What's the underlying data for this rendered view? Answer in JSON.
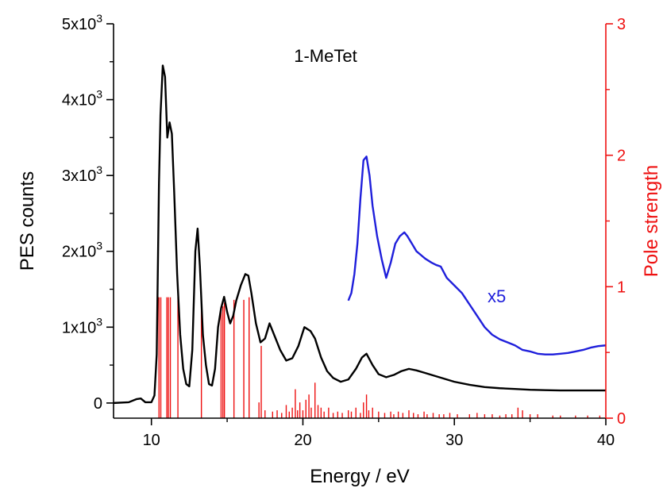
{
  "chart_data": {
    "type": "line",
    "title": "",
    "xlabel": "Energy / eV",
    "ylabel": "PES counts",
    "y2label": "Pole strength",
    "xlim": [
      7.5,
      40
    ],
    "ylim": [
      -200,
      5000
    ],
    "y2lim": [
      0,
      3
    ],
    "x_ticks": [
      10,
      20,
      30,
      40
    ],
    "y_ticks": [
      {
        "value": 0,
        "base": "0",
        "exp": ""
      },
      {
        "value": 1000,
        "base": "1x10",
        "exp": "3"
      },
      {
        "value": 2000,
        "base": "2x10",
        "exp": "3"
      },
      {
        "value": 3000,
        "base": "3x10",
        "exp": "3"
      },
      {
        "value": 4000,
        "base": "4x10",
        "exp": "3"
      },
      {
        "value": 5000,
        "base": "5x10",
        "exp": "3"
      }
    ],
    "y2_ticks": [
      0,
      1,
      2,
      3
    ],
    "annotations": {
      "molecule": "1-MeTet",
      "scale_factor": "x5"
    },
    "colors": {
      "pes": "#000000",
      "scaled": "#1f1fdb",
      "poles": "#ee1111",
      "axis": "#000000",
      "axis2": "#ee1111"
    },
    "series": [
      {
        "color": "#000000",
        "x": [
          7.5,
          8.5,
          9.0,
          9.3,
          9.6,
          10.0,
          10.2,
          10.35,
          10.5,
          10.6,
          10.75,
          10.9,
          11.05,
          11.2,
          11.35,
          11.5,
          11.7,
          11.9,
          12.1,
          12.3,
          12.5,
          12.7,
          12.9,
          13.05,
          13.2,
          13.4,
          13.6,
          13.8,
          14.0,
          14.2,
          14.4,
          14.6,
          14.8,
          15.0,
          15.2,
          15.4,
          15.6,
          15.9,
          16.2,
          16.4,
          16.6,
          16.9,
          17.2,
          17.5,
          17.8,
          18.1,
          18.5,
          18.9,
          19.3,
          19.7,
          20.1,
          20.5,
          20.8,
          21.2,
          21.6,
          22.0,
          22.5,
          23.0,
          23.5,
          23.9,
          24.2,
          24.6,
          25.0,
          25.5,
          26.0,
          26.5,
          27.0,
          27.5,
          28.0,
          29.0,
          30.0,
          31.0,
          32.0,
          33.0,
          34.0,
          35.0,
          36.0,
          37.0,
          38.0,
          39.0,
          40.0
        ],
        "values": [
          0,
          10,
          50,
          60,
          10,
          10,
          100,
          640,
          2900,
          3800,
          4450,
          4300,
          3500,
          3700,
          3550,
          2800,
          1700,
          900,
          450,
          250,
          220,
          700,
          2000,
          2300,
          1800,
          900,
          500,
          250,
          230,
          450,
          1000,
          1250,
          1400,
          1200,
          1050,
          1150,
          1350,
          1550,
          1700,
          1680,
          1450,
          1050,
          800,
          850,
          1050,
          900,
          700,
          560,
          590,
          750,
          1000,
          950,
          850,
          600,
          420,
          330,
          280,
          310,
          450,
          600,
          650,
          500,
          380,
          340,
          370,
          420,
          450,
          430,
          400,
          340,
          280,
          240,
          210,
          195,
          185,
          175,
          170,
          165,
          165,
          165,
          165
        ]
      },
      {
        "name": "x5",
        "color": "#1f1fdb",
        "x": [
          23.0,
          23.2,
          23.4,
          23.6,
          23.8,
          24.0,
          24.2,
          24.4,
          24.6,
          24.9,
          25.2,
          25.5,
          25.8,
          26.1,
          26.4,
          26.7,
          26.9,
          27.2,
          27.5,
          27.8,
          28.1,
          28.5,
          28.8,
          29.1,
          29.5,
          30.0,
          30.5,
          31.0,
          31.5,
          32.0,
          32.5,
          33.0,
          33.5,
          34.0,
          34.5,
          35.0,
          35.5,
          36.0,
          36.5,
          37.0,
          37.5,
          38.0,
          38.5,
          39.0,
          39.5,
          40.0
        ],
        "values": [
          1350,
          1450,
          1700,
          2100,
          2700,
          3200,
          3250,
          3000,
          2600,
          2200,
          1900,
          1650,
          1850,
          2100,
          2200,
          2250,
          2200,
          2100,
          2000,
          1950,
          1900,
          1850,
          1820,
          1800,
          1650,
          1550,
          1450,
          1300,
          1150,
          1000,
          900,
          840,
          800,
          760,
          700,
          680,
          650,
          640,
          640,
          650,
          660,
          680,
          700,
          730,
          750,
          760
        ]
      }
    ],
    "poles": {
      "x": [
        10.5,
        10.62,
        11.02,
        11.12,
        11.25,
        11.75,
        13.3,
        14.6,
        14.72,
        14.82,
        15.45,
        16.1,
        16.45,
        17.1,
        17.25,
        17.5,
        18.0,
        18.3,
        18.6,
        18.9,
        19.1,
        19.3,
        19.5,
        19.65,
        19.8,
        20.0,
        20.2,
        20.4,
        20.55,
        20.8,
        21.0,
        21.2,
        21.4,
        21.7,
        22.0,
        22.3,
        22.6,
        23.0,
        23.2,
        23.5,
        23.8,
        24.0,
        24.2,
        24.35,
        24.6,
        25.0,
        25.4,
        25.8,
        26.0,
        26.3,
        26.6,
        27.0,
        27.3,
        27.6,
        28.0,
        28.2,
        28.6,
        29.0,
        29.3,
        29.7,
        30.2,
        31.0,
        31.5,
        32.0,
        32.5,
        33.0,
        33.4,
        33.8,
        34.2,
        34.5,
        35.0,
        35.5,
        36.5,
        37.0,
        38.0,
        38.8,
        39.6
      ],
      "values": [
        0.92,
        0.92,
        0.92,
        0.92,
        0.92,
        0.92,
        0.92,
        0.85,
        0.85,
        0.88,
        0.9,
        0.9,
        0.92,
        0.12,
        0.55,
        0.06,
        0.05,
        0.06,
        0.04,
        0.1,
        0.05,
        0.08,
        0.22,
        0.06,
        0.12,
        0.06,
        0.14,
        0.18,
        0.08,
        0.27,
        0.1,
        0.08,
        0.05,
        0.08,
        0.04,
        0.05,
        0.04,
        0.06,
        0.05,
        0.08,
        0.04,
        0.12,
        0.18,
        0.06,
        0.08,
        0.05,
        0.04,
        0.05,
        0.03,
        0.05,
        0.04,
        0.06,
        0.04,
        0.03,
        0.05,
        0.03,
        0.04,
        0.03,
        0.03,
        0.04,
        0.03,
        0.03,
        0.04,
        0.03,
        0.03,
        0.02,
        0.03,
        0.03,
        0.08,
        0.06,
        0.03,
        0.03,
        0.02,
        0.02,
        0.02,
        0.02,
        0.02
      ]
    }
  }
}
